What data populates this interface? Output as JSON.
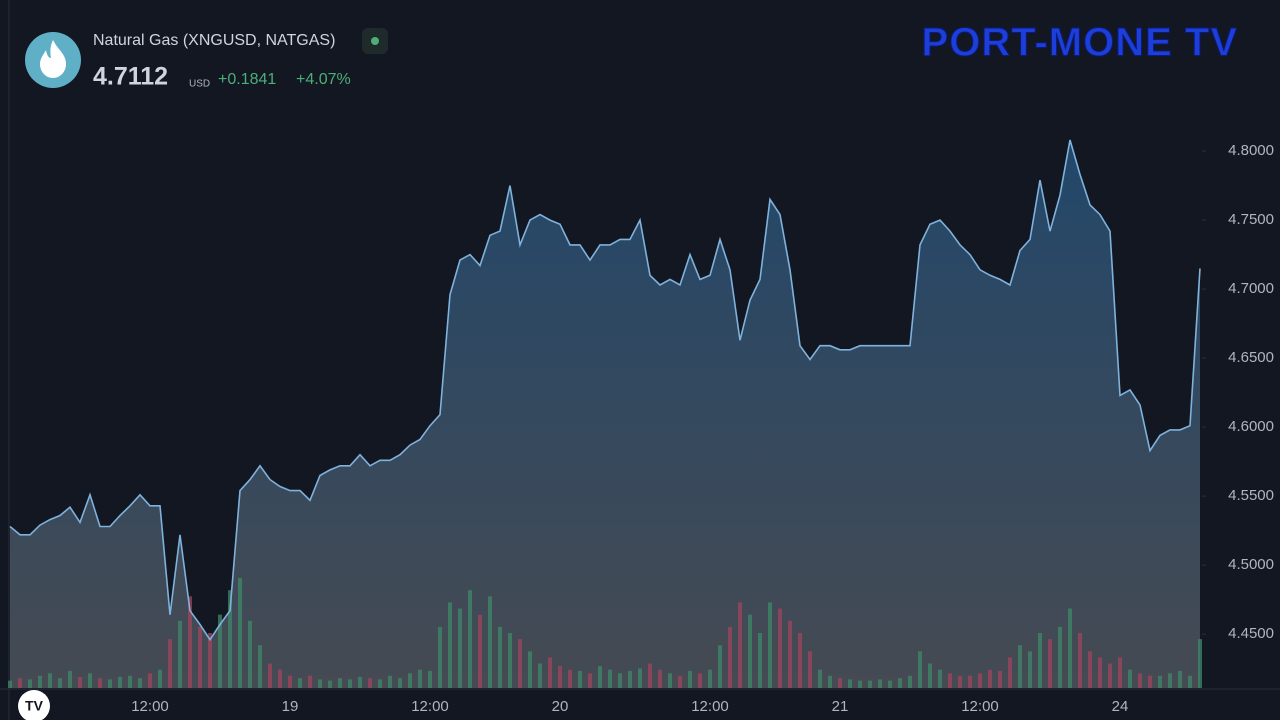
{
  "chart_data": {
    "type": "area",
    "title": "Natural Gas (XNGUSD, NATGAS)",
    "price": 4.7112,
    "currency": "USD",
    "change": {
      "value": 0.1841,
      "label": "+0.1841"
    },
    "change_pct": {
      "value": 4.07,
      "label": "+4.07%"
    },
    "watermark": "PORT-MONE TV",
    "color": "#7fb2dc",
    "categories": [
      null,
      null,
      null,
      null,
      null,
      null,
      null,
      null,
      null,
      null,
      null,
      null,
      null,
      null,
      "12:00",
      null,
      null,
      null,
      null,
      null,
      null,
      null,
      null,
      null,
      null,
      null,
      null,
      null,
      "19",
      null,
      null,
      null,
      null,
      null,
      null,
      null,
      null,
      null,
      null,
      null,
      null,
      null,
      "12:00",
      null,
      null,
      null,
      null,
      null,
      null,
      null,
      null,
      null,
      null,
      null,
      null,
      "20",
      null,
      null,
      null,
      null,
      null,
      null,
      null,
      null,
      null,
      null,
      null,
      null,
      null,
      null,
      "12:00",
      null,
      null,
      null,
      null,
      null,
      null,
      null,
      null,
      null,
      null,
      null,
      null,
      "21",
      null,
      null,
      null,
      null,
      null,
      null,
      null,
      null,
      null,
      null,
      null,
      null,
      null,
      "12:00",
      null,
      null,
      null,
      null,
      null,
      null,
      null,
      null,
      null,
      null,
      null,
      null,
      null,
      "24",
      null,
      null,
      null,
      null,
      null,
      null,
      null,
      null
    ],
    "values": [
      4.528,
      4.522,
      4.522,
      4.529,
      4.533,
      4.536,
      4.542,
      4.531,
      4.551,
      4.528,
      4.528,
      4.536,
      4.543,
      4.551,
      4.543,
      4.543,
      4.464,
      4.522,
      4.467,
      4.457,
      4.446,
      4.457,
      4.467,
      4.554,
      4.562,
      4.572,
      4.562,
      4.557,
      4.554,
      4.554,
      4.547,
      4.565,
      4.569,
      4.572,
      4.572,
      4.58,
      4.572,
      4.576,
      4.576,
      4.58,
      4.587,
      4.591,
      4.601,
      4.609,
      4.696,
      4.721,
      4.725,
      4.717,
      4.739,
      4.742,
      4.775,
      4.732,
      4.75,
      4.754,
      4.75,
      4.747,
      4.732,
      4.732,
      4.721,
      4.732,
      4.732,
      4.736,
      4.736,
      4.75,
      4.71,
      4.703,
      4.707,
      4.703,
      4.725,
      4.707,
      4.71,
      4.736,
      4.714,
      4.663,
      4.692,
      4.707,
      4.765,
      4.754,
      4.714,
      4.659,
      4.649,
      4.659,
      4.659,
      4.656,
      4.656,
      4.659,
      4.659,
      4.659,
      4.659,
      4.659,
      4.659,
      4.732,
      4.747,
      4.75,
      4.742,
      4.732,
      4.725,
      4.714,
      4.71,
      4.707,
      4.703,
      4.728,
      4.736,
      4.779,
      4.742,
      4.768,
      4.808,
      4.783,
      4.761,
      4.754,
      4.742,
      4.623,
      4.627,
      4.616,
      4.583,
      4.594,
      4.598,
      4.598,
      4.601,
      4.715
    ],
    "volume": {
      "up_color": "#3f8a68",
      "down_color": "#a0465c",
      "values": [
        6,
        8,
        7,
        10,
        12,
        8,
        14,
        9,
        12,
        8,
        7,
        9,
        10,
        8,
        12,
        15,
        40,
        55,
        75,
        50,
        45,
        60,
        80,
        90,
        55,
        35,
        20,
        15,
        10,
        8,
        10,
        7,
        6,
        8,
        7,
        9,
        8,
        7,
        10,
        8,
        12,
        15,
        14,
        50,
        70,
        65,
        80,
        60,
        75,
        50,
        45,
        40,
        30,
        20,
        25,
        18,
        15,
        14,
        12,
        18,
        15,
        12,
        14,
        16,
        20,
        15,
        12,
        10,
        14,
        12,
        15,
        35,
        50,
        70,
        60,
        45,
        70,
        65,
        55,
        45,
        30,
        15,
        10,
        8,
        7,
        6,
        6,
        7,
        6,
        8,
        10,
        30,
        20,
        15,
        12,
        10,
        10,
        12,
        15,
        14,
        25,
        35,
        30,
        45,
        40,
        50,
        65,
        45,
        30,
        25,
        20,
        25,
        15,
        12,
        10,
        10,
        12,
        14,
        10,
        40
      ]
    },
    "ylim": [
      4.411,
      4.837
    ],
    "yticks": [
      {
        "value": 4.45,
        "label": "4.4500"
      },
      {
        "value": 4.5,
        "label": "4.5000"
      },
      {
        "value": 4.55,
        "label": "4.5500"
      },
      {
        "value": 4.6,
        "label": "4.6000"
      },
      {
        "value": 4.65,
        "label": "4.6500"
      },
      {
        "value": 4.7,
        "label": "4.7000"
      },
      {
        "value": 4.75,
        "label": "4.7500"
      },
      {
        "value": 4.8,
        "label": "4.8000"
      }
    ],
    "grid": false
  }
}
